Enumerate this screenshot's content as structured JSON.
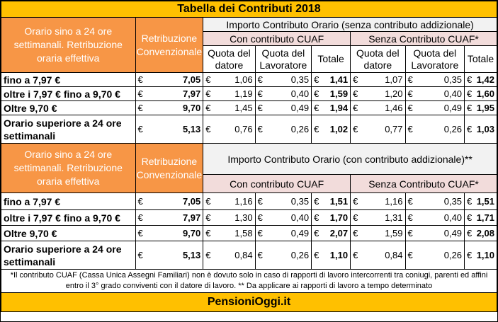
{
  "title": "Tabella dei Contributi 2018",
  "brand": "PensioniOggi.it",
  "currency": "€",
  "colors": {
    "header_bar": "#ffc000",
    "orange": "#f79646",
    "pink": "#f2dcdb",
    "grey": "#f2f2f2"
  },
  "section1": {
    "label_header": "Orario sino a 24 ore settimanali. Retribuzione oraria effettiva",
    "retribuzione_header": "Retribuzione Convenzionale",
    "importo_header": "Importo Contributo Orario (senza contributo addizionale)",
    "con_cuaf": "Con contributo CUAF",
    "senza_cuaf": "Senza Contributo CUAF*",
    "quota_datore": "Quota del datore",
    "quota_lavoratore": "Quota del Lavoratore",
    "totale": "Totale",
    "rows": [
      {
        "label": "fino a 7,97 €",
        "retrib": "7,05",
        "c1": "1,06",
        "c2": "0,35",
        "c3": "1,41",
        "s1": "1,07",
        "s2": "0,35",
        "s3": "1,42"
      },
      {
        "label": "oltre i 7,97 € fino a 9,70 €",
        "retrib": "7,97",
        "c1": "1,19",
        "c2": "0,40",
        "c3": "1,59",
        "s1": "1,20",
        "s2": "0,40",
        "s3": "1,60"
      },
      {
        "label": "Oltre 9,70 €",
        "retrib": "9,70",
        "c1": "1,45",
        "c2": "0,49",
        "c3": "1,94",
        "s1": "1,46",
        "s2": "0,49",
        "s3": "1,95"
      },
      {
        "label": "Orario superiore a 24 ore settimanali",
        "retrib": "5,13",
        "c1": "0,76",
        "c2": "0,26",
        "c3": "1,02",
        "s1": "0,77",
        "s2": "0,26",
        "s3": "1,03"
      }
    ]
  },
  "section2": {
    "label_header": "Orario sino a 24 ore settimanali. Retribuzione oraria effettiva",
    "retribuzione_header": "Retribuzione Convenzionale",
    "importo_header": "Importo Contributo Orario (con contributo addizionale)**",
    "con_cuaf": "Con contributo CUAF",
    "senza_cuaf": "Senza Contributo CUAF*",
    "rows": [
      {
        "label": "fino a 7,97 €",
        "retrib": "7,05",
        "c1": "1,16",
        "c2": "0,35",
        "c3": "1,51",
        "s1": "1,16",
        "s2": "0,35",
        "s3": "1,51"
      },
      {
        "label": "oltre i 7,97 € fino a 9,70 €",
        "retrib": "7,97",
        "c1": "1,30",
        "c2": "0,40",
        "c3": "1,70",
        "s1": "1,31",
        "s2": "0,40",
        "s3": "1,71"
      },
      {
        "label": "Oltre 9,70 €",
        "retrib": "9,70",
        "c1": "1,58",
        "c2": "0,49",
        "c3": "2,07",
        "s1": "1,59",
        "s2": "0,49",
        "s3": "2,08"
      },
      {
        "label": "Orario superiore a 24 ore settimanali",
        "retrib": "5,13",
        "c1": "0,84",
        "c2": "0,26",
        "c3": "1,10",
        "s1": "0,84",
        "s2": "0,26",
        "s3": "1,10"
      }
    ]
  },
  "footnote": "*Il contributo CUAF (Cassa Unica Assegni Familiari) non è dovuto solo in caso di rapporti di lavoro intercorrenti tra coniugi, parenti ed affini entro il 3° grado conviventi con il datore di lavoro. ** Da applicare ai rapporti di lavoro a tempo determinato"
}
